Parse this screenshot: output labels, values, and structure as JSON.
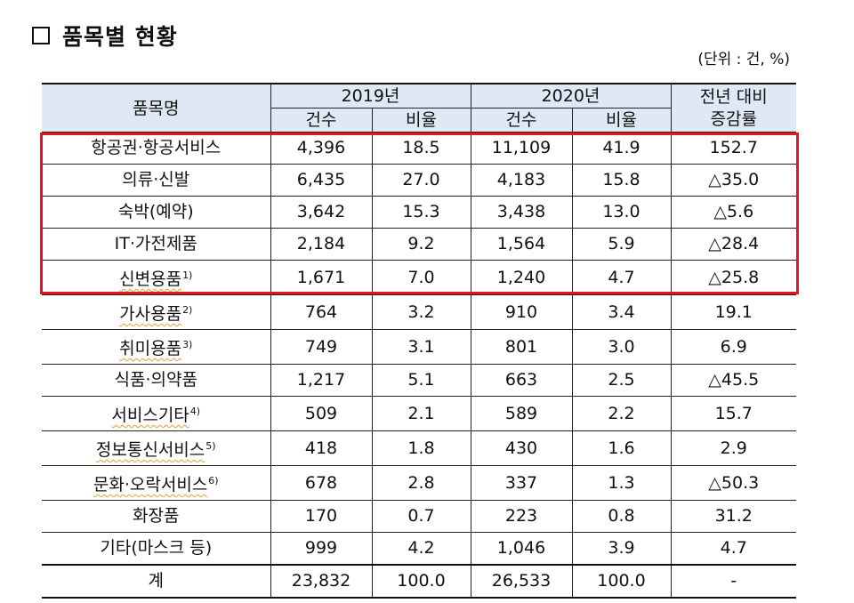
{
  "title": "품목별 현황",
  "unit_note": "(단위 : 건, %)",
  "table": {
    "header": {
      "item": "품목명",
      "year1": "2019년",
      "year2": "2020년",
      "change_line1": "전년 대비",
      "change_line2": "증감률",
      "count": "건수",
      "ratio": "비율"
    },
    "rows": [
      {
        "name": "항공권·항공서비스",
        "note": "",
        "c2019": "4,396",
        "r2019": "18.5",
        "c2020": "11,109",
        "r2020": "41.9",
        "change": "152.7"
      },
      {
        "name": "의류·신발",
        "note": "",
        "c2019": "6,435",
        "r2019": "27.0",
        "c2020": "4,183",
        "r2020": "15.8",
        "change": "△35.0"
      },
      {
        "name": "숙박(예약)",
        "note": "",
        "c2019": "3,642",
        "r2019": "15.3",
        "c2020": "3,438",
        "r2020": "13.0",
        "change": "△5.6"
      },
      {
        "name": "IT·가전제품",
        "note": "",
        "c2019": "2,184",
        "r2019": "9.2",
        "c2020": "1,564",
        "r2020": "5.9",
        "change": "△28.4"
      },
      {
        "name": "신변용품",
        "note": "1)",
        "c2019": "1,671",
        "r2019": "7.0",
        "c2020": "1,240",
        "r2020": "4.7",
        "change": "△25.8"
      },
      {
        "name": "가사용품",
        "note": "2)",
        "c2019": "764",
        "r2019": "3.2",
        "c2020": "910",
        "r2020": "3.4",
        "change": "19.1"
      },
      {
        "name": "취미용품",
        "note": "3)",
        "c2019": "749",
        "r2019": "3.1",
        "c2020": "801",
        "r2020": "3.0",
        "change": "6.9"
      },
      {
        "name": "식품·의약품",
        "note": "",
        "c2019": "1,217",
        "r2019": "5.1",
        "c2020": "663",
        "r2020": "2.5",
        "change": "△45.5"
      },
      {
        "name": "서비스기타",
        "note": "4)",
        "c2019": "509",
        "r2019": "2.1",
        "c2020": "589",
        "r2020": "2.2",
        "change": "15.7"
      },
      {
        "name": "정보통신서비스",
        "note": "5)",
        "c2019": "418",
        "r2019": "1.8",
        "c2020": "430",
        "r2020": "1.6",
        "change": "2.9"
      },
      {
        "name": "문화·오락서비스",
        "note": "6)",
        "c2019": "678",
        "r2019": "2.8",
        "c2020": "337",
        "r2020": "1.3",
        "change": "△50.3"
      },
      {
        "name": "화장품",
        "note": "",
        "c2019": "170",
        "r2019": "0.7",
        "c2020": "223",
        "r2020": "0.8",
        "change": "31.2"
      },
      {
        "name": "기타(마스크 등)",
        "note": "",
        "c2019": "999",
        "r2019": "4.2",
        "c2020": "1,046",
        "r2020": "3.9",
        "change": "4.7"
      }
    ],
    "total": {
      "name": "계",
      "c2019": "23,832",
      "r2019": "100.0",
      "c2020": "26,533",
      "r2020": "100.0",
      "change": "-"
    }
  },
  "highlight": {
    "color": "#e8141b",
    "rows_covered": 5
  },
  "colors": {
    "header_bg": "#dfe9f5",
    "border": "#222222"
  }
}
